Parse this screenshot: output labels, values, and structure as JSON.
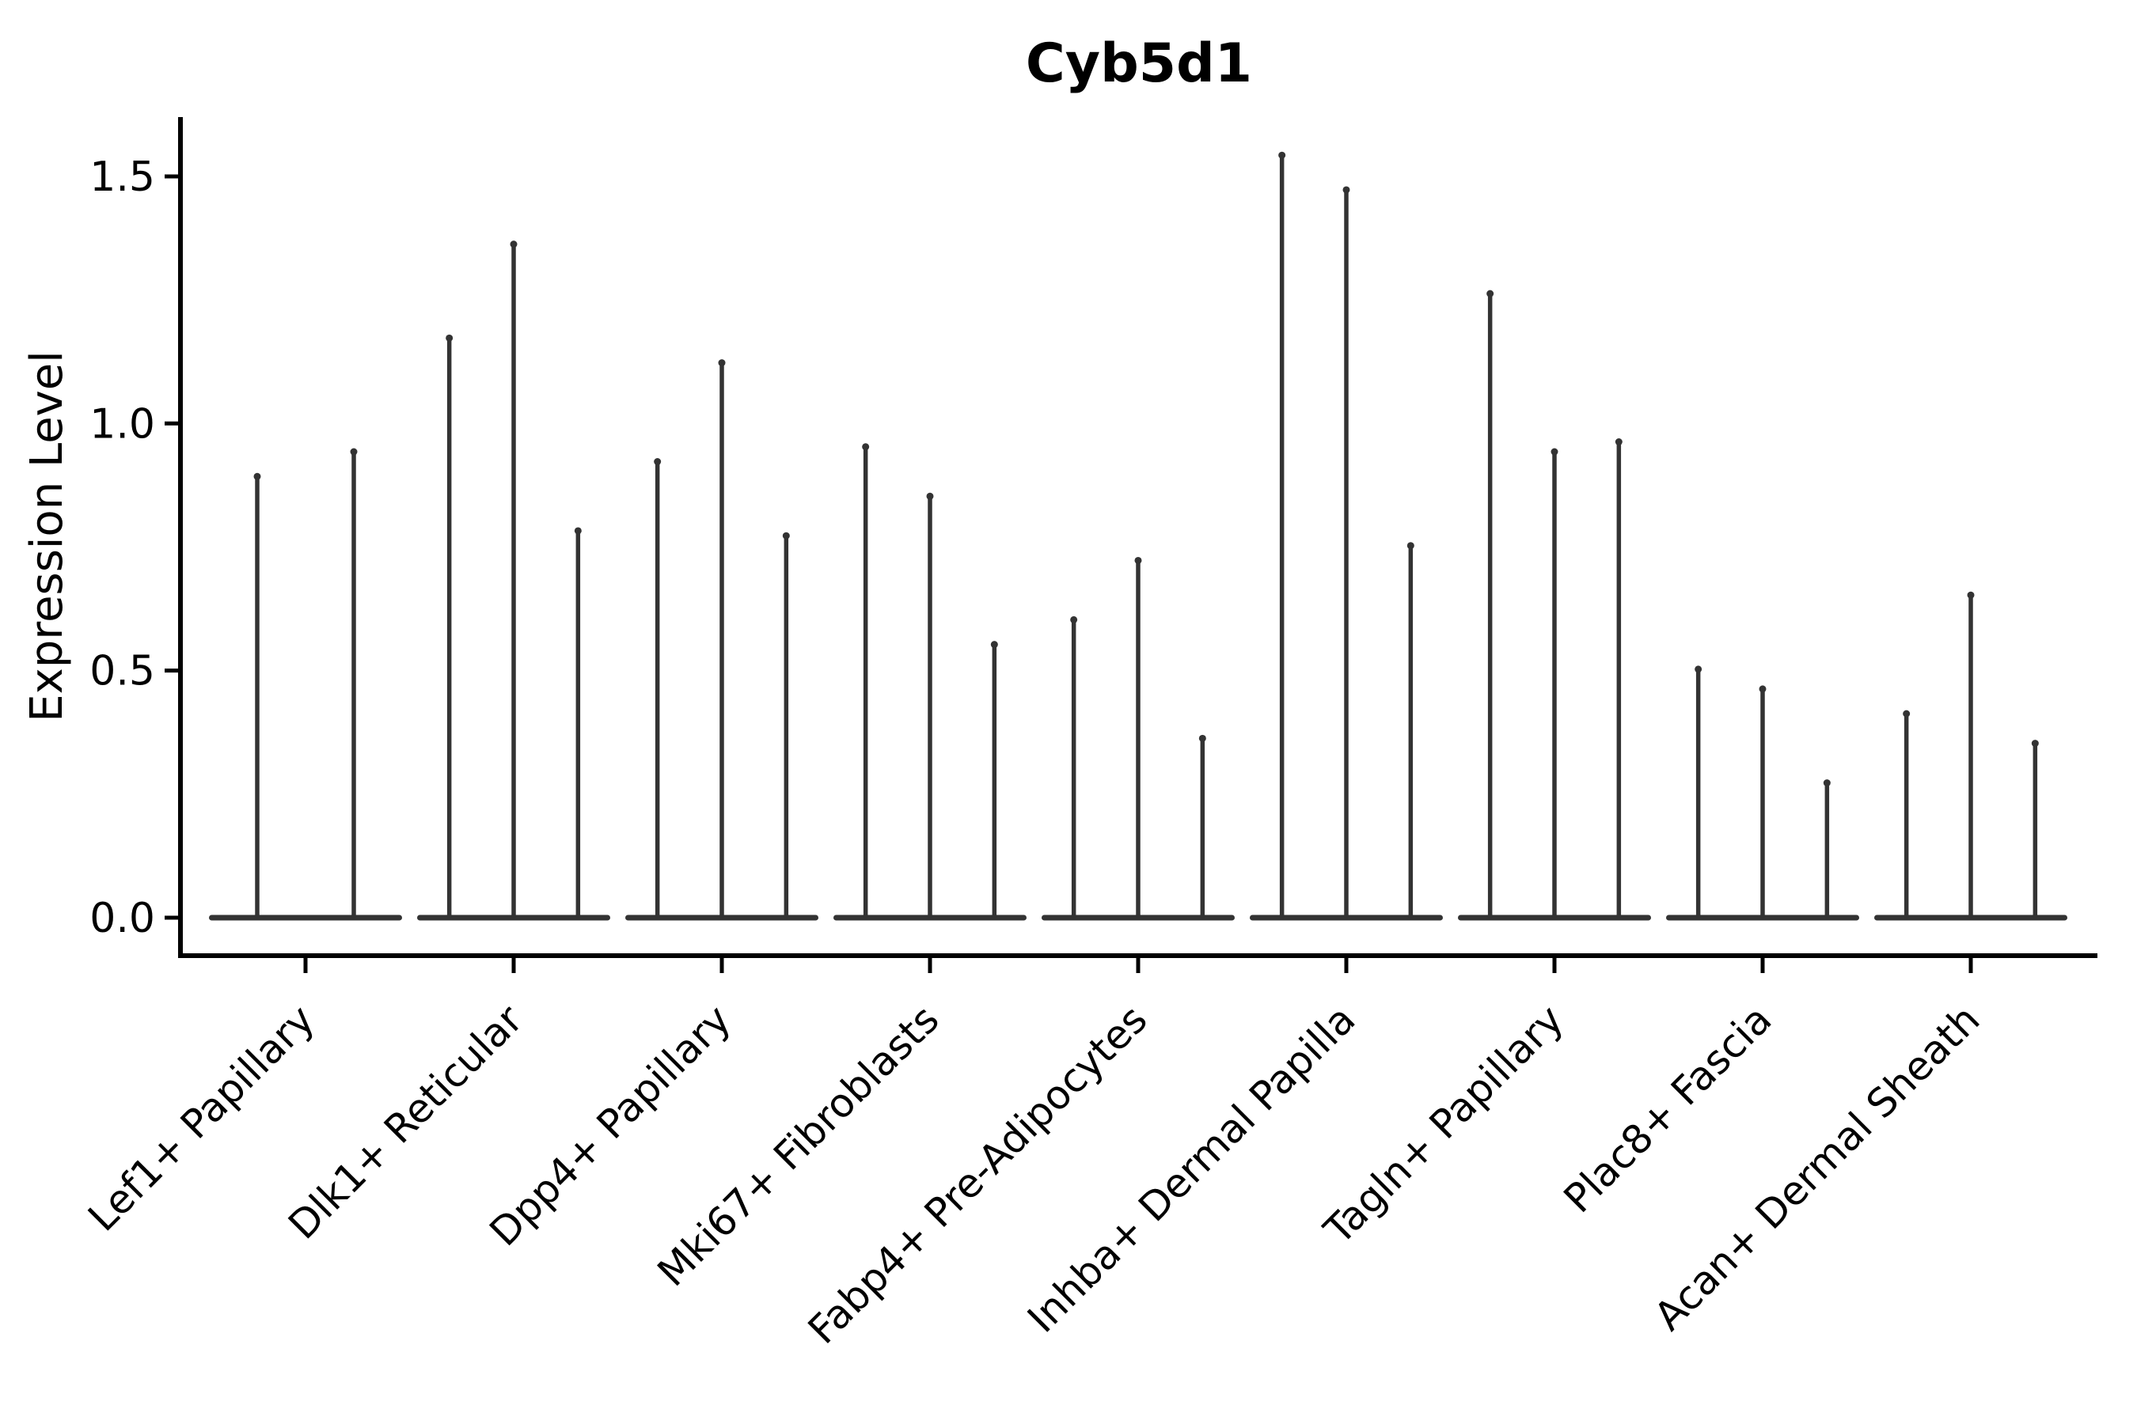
{
  "title": "Cyb5d1",
  "axes": {
    "ylabel": "Expression Level",
    "xlabel": ""
  },
  "chart_data": {
    "type": "violin",
    "title": "Cyb5d1",
    "xlabel": "",
    "ylabel": "Expression Level",
    "yticks": [
      0.0,
      0.5,
      1.0,
      1.5
    ],
    "ylim": [
      -0.08,
      1.62
    ],
    "grid": false,
    "legend": "none",
    "note": "Collapsed violins: nearly all density at 0 (flat lens at baseline), thin spike up to the max expression value per violin",
    "categories": [
      "Lef1+ Papillary",
      "Dlk1+ Reticular",
      "Dpp4+ Papillary",
      "Mki67+ Fibroblasts",
      "Fabp4+ Pre-Adipocytes",
      "Inhba+ Dermal Papilla",
      "Tagln+ Papillary",
      "Plac8+ Fascia",
      "Acan+ Dermal Sheath"
    ],
    "series": [
      {
        "category": "Lef1+ Papillary",
        "violin_max_values": [
          0.9,
          0.95
        ]
      },
      {
        "category": "Dlk1+ Reticular",
        "violin_max_values": [
          1.18,
          1.37,
          0.79
        ]
      },
      {
        "category": "Dpp4+ Papillary",
        "violin_max_values": [
          0.93,
          1.13,
          0.78
        ]
      },
      {
        "category": "Mki67+ Fibroblasts",
        "violin_max_values": [
          0.96,
          0.86,
          0.56
        ]
      },
      {
        "category": "Fabp4+ Pre-Adipocytes",
        "violin_max_values": [
          0.61,
          0.73,
          0.37
        ]
      },
      {
        "category": "Inhba+ Dermal Papilla",
        "violin_max_values": [
          1.55,
          1.48,
          0.76
        ]
      },
      {
        "category": "Tagln+ Papillary",
        "violin_max_values": [
          1.27,
          0.95,
          0.97
        ]
      },
      {
        "category": "Plac8+ Fascia",
        "violin_max_values": [
          0.51,
          0.47,
          0.28
        ]
      },
      {
        "category": "Acan+ Dermal Sheath",
        "violin_max_values": [
          0.42,
          0.66,
          0.36
        ]
      }
    ]
  },
  "colors": {
    "violin": "#333333",
    "axis": "#000000",
    "text": "#000000",
    "background": "#ffffff"
  }
}
